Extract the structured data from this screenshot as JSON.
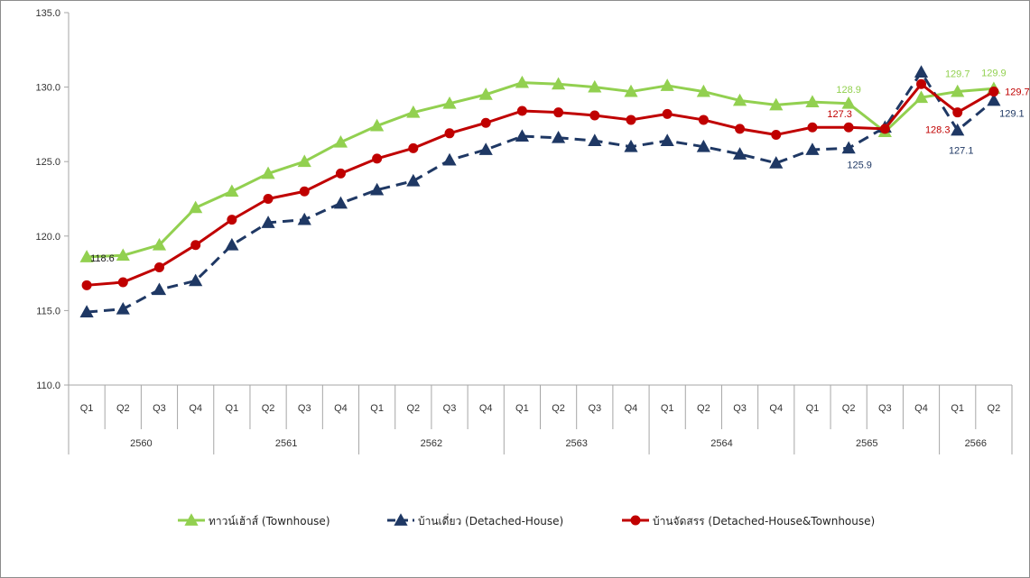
{
  "chart_data": {
    "type": "line",
    "ylim": [
      110,
      135
    ],
    "yticks": [
      "110.0",
      "115.0",
      "120.0",
      "125.0",
      "130.0",
      "135.0"
    ],
    "quarters": [
      "Q1",
      "Q2",
      "Q3",
      "Q4",
      "Q1",
      "Q2",
      "Q3",
      "Q4",
      "Q1",
      "Q2",
      "Q3",
      "Q4",
      "Q1",
      "Q2",
      "Q3",
      "Q4",
      "Q1",
      "Q2",
      "Q3",
      "Q4",
      "Q1",
      "Q2",
      "Q3",
      "Q4",
      "Q1",
      "Q2"
    ],
    "years": [
      {
        "label": "2560",
        "count": 4
      },
      {
        "label": "2561",
        "count": 4
      },
      {
        "label": "2562",
        "count": 4
      },
      {
        "label": "2563",
        "count": 4
      },
      {
        "label": "2564",
        "count": 4
      },
      {
        "label": "2565",
        "count": 4
      },
      {
        "label": "2566",
        "count": 2
      }
    ],
    "grid": false,
    "legend_position": "bottom",
    "series": [
      {
        "name": "ทาวน์เฮ้าส์ (Townhouse)",
        "color": "#92d050",
        "marker": "triangle",
        "dash": "solid",
        "values": [
          118.6,
          118.7,
          119.4,
          121.9,
          123.0,
          124.2,
          125.0,
          126.3,
          127.4,
          128.3,
          128.9,
          129.5,
          130.3,
          130.2,
          130.0,
          129.7,
          130.1,
          129.7,
          129.1,
          128.8,
          129.0,
          128.9,
          127.0,
          129.3,
          129.7,
          129.9
        ],
        "labels": [
          {
            "index": 0,
            "text": "118.6",
            "color": "#1a1a1a",
            "dx": 4,
            "dy": 5,
            "anchor": "start"
          },
          {
            "index": 21,
            "text": "128.9",
            "color": "#92d050",
            "dx": 0,
            "dy": -12,
            "anchor": "middle"
          },
          {
            "index": 24,
            "text": "129.7",
            "color": "#92d050",
            "dx": 0,
            "dy": -16,
            "anchor": "middle"
          },
          {
            "index": 25,
            "text": "129.9",
            "color": "#92d050",
            "dx": 0,
            "dy": -14,
            "anchor": "middle"
          }
        ]
      },
      {
        "name": "บ้านเดี่ยว (Detached-House)",
        "color": "#1f3864",
        "marker": "triangle",
        "dash": "dashed",
        "values": [
          114.9,
          115.1,
          116.4,
          117.0,
          119.4,
          120.9,
          121.1,
          122.2,
          123.1,
          123.7,
          125.1,
          125.8,
          126.7,
          126.6,
          126.4,
          126.0,
          126.4,
          126.0,
          125.5,
          124.9,
          125.8,
          125.9,
          127.3,
          131.0,
          127.1,
          129.1
        ],
        "labels": [
          {
            "index": 21,
            "text": "125.9",
            "color": "#1f3864",
            "dx": 12,
            "dy": 22,
            "anchor": "middle"
          },
          {
            "index": 24,
            "text": "127.1",
            "color": "#1f3864",
            "dx": 4,
            "dy": 26,
            "anchor": "middle"
          },
          {
            "index": 25,
            "text": "129.1",
            "color": "#1f3864",
            "dx": 20,
            "dy": 18,
            "anchor": "middle"
          }
        ]
      },
      {
        "name": "บ้านจัดสรร (Detached-House&Townhouse)",
        "color": "#c00000",
        "marker": "circle",
        "dash": "solid",
        "values": [
          116.7,
          116.9,
          117.9,
          119.4,
          121.1,
          122.5,
          123.0,
          124.2,
          125.2,
          125.9,
          126.9,
          127.6,
          128.4,
          128.3,
          128.1,
          127.8,
          128.2,
          127.8,
          127.2,
          126.8,
          127.3,
          127.3,
          127.2,
          130.2,
          128.3,
          129.7
        ],
        "labels": [
          {
            "index": 21,
            "text": "127.3",
            "color": "#c00000",
            "dx": -10,
            "dy": -11,
            "anchor": "middle"
          },
          {
            "index": 24,
            "text": "128.3",
            "color": "#c00000",
            "dx": -22,
            "dy": 23,
            "anchor": "middle"
          },
          {
            "index": 25,
            "text": "129.7",
            "color": "#c00000",
            "dx": 26,
            "dy": 4,
            "anchor": "middle"
          }
        ]
      }
    ]
  }
}
